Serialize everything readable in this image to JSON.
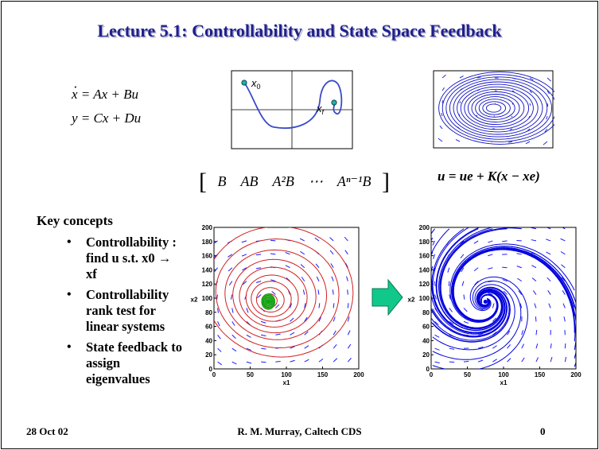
{
  "slide": {
    "title": "Lecture 5.1: Controllability and State Space Feedback",
    "equations": {
      "state_lhs": "x",
      "state_rhs": "= Ax + Bu",
      "output": "y = Cx + Du"
    },
    "diagram_labels": {
      "start": "x0",
      "final": "xf"
    },
    "controllability_matrix": [
      "B",
      "AB",
      "A²B",
      "⋯",
      "Aⁿ⁻¹B"
    ],
    "feedback_law": "u = ue + K(x − xe)",
    "key_concepts": {
      "heading": "Key concepts",
      "items": [
        "Controllability : find u s.t. x0 → xf",
        "Controllability rank test for linear systems",
        "State feedback to assign eigenvalues"
      ]
    },
    "footer": {
      "date": "28 Oct 02",
      "author": "R. M. Murray, Caltech CDS",
      "page": "0"
    },
    "colors": {
      "title": "#1f1f8f",
      "arrow": "#10c88a",
      "vectors": "#1a1aff",
      "open_loop": "#d02020",
      "closed_loop": "#0000dd"
    }
  },
  "chart_data": [
    {
      "type": "phase_portrait",
      "xlim": [
        0,
        200
      ],
      "ylim": [
        0,
        200
      ],
      "xticks": [
        "0",
        "50",
        "100",
        "150",
        "200"
      ],
      "yticks": [
        "0",
        "20",
        "40",
        "60",
        "80",
        "100",
        "120",
        "140",
        "160",
        "180",
        "200"
      ],
      "xlabel": "x1",
      "ylabel": "x2",
      "equilibrium": [
        75,
        95
      ],
      "behavior": "closed orbits (red) around a center, green near the equilibrium"
    },
    {
      "type": "phase_portrait",
      "xlim": [
        0,
        200
      ],
      "ylim": [
        0,
        200
      ],
      "xticks": [
        "0",
        "50",
        "100",
        "150",
        "200"
      ],
      "yticks": [
        "0",
        "20",
        "40",
        "60",
        "80",
        "100",
        "120",
        "140",
        "160",
        "180",
        "200"
      ],
      "xlabel": "x1",
      "ylabel": "x2",
      "equilibrium": [
        75,
        95
      ],
      "behavior": "trajectories (blue) spiralling into a stable focus"
    }
  ]
}
